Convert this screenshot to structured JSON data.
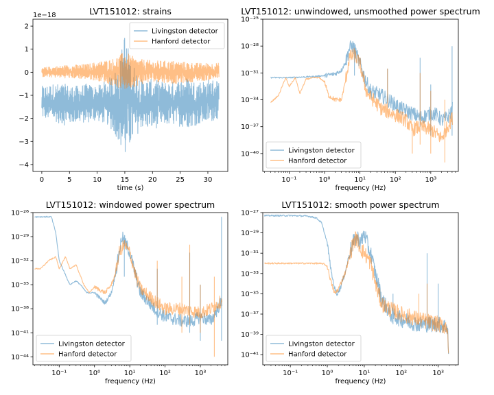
{
  "chart_data": [
    {
      "type": "line",
      "title": "LVT151012: strains",
      "xlabel": "time (s)",
      "ylabel": "",
      "offset_label": "1e−18",
      "xlim": [
        -1.6,
        33.6
      ],
      "ylim": [
        -4.3,
        2.3
      ],
      "xticks": [
        0,
        5,
        10,
        15,
        20,
        25,
        30
      ],
      "yticks": [
        -4,
        -3,
        -2,
        -1,
        0,
        1,
        2
      ],
      "legend": "top-right",
      "series": [
        {
          "name": "Livingston detector",
          "color": "#1f77b4",
          "envelope": [
            [
              0,
              -2.0,
              -0.6
            ],
            [
              2,
              -2.1,
              -0.5
            ],
            [
              4,
              -2.3,
              -0.5
            ],
            [
              6,
              -2.2,
              -0.6
            ],
            [
              8,
              -2.2,
              -0.5
            ],
            [
              10,
              -2.1,
              -0.6
            ],
            [
              12,
              -2.3,
              -0.3
            ],
            [
              14,
              -3.0,
              0.3
            ],
            [
              15,
              -3.9,
              1.9
            ],
            [
              16,
              -3.2,
              0.6
            ],
            [
              18,
              -2.4,
              -0.3
            ],
            [
              20,
              -2.5,
              -0.3
            ],
            [
              22,
              -2.3,
              -0.4
            ],
            [
              24,
              -2.3,
              -0.4
            ],
            [
              26,
              -2.4,
              -0.2
            ],
            [
              28,
              -2.3,
              -0.4
            ],
            [
              30,
              -2.2,
              -0.3
            ],
            [
              32,
              -2.0,
              -0.3
            ]
          ]
        },
        {
          "name": "Hanford detector",
          "color": "#ff7f0e",
          "envelope": [
            [
              0,
              -0.2,
              0.2
            ],
            [
              4,
              -0.25,
              0.3
            ],
            [
              8,
              -0.3,
              0.35
            ],
            [
              11,
              -0.4,
              0.5
            ],
            [
              13,
              -0.6,
              0.6
            ],
            [
              15,
              -0.8,
              0.9
            ],
            [
              17,
              -0.6,
              0.6
            ],
            [
              20,
              -0.4,
              0.5
            ],
            [
              24,
              -0.5,
              0.5
            ],
            [
              28,
              -0.4,
              0.4
            ],
            [
              32,
              -0.3,
              0.4
            ]
          ]
        }
      ]
    },
    {
      "type": "line",
      "title": "LVT151012: unwindowed, unsmoothed power spectrum",
      "xlabel": "frequency (Hz)",
      "ylabel": "",
      "x_scale": "log",
      "y_scale": "log",
      "xlim": [
        0.018,
        6000
      ],
      "ylim": [
        1e-42,
        1e-25
      ],
      "xticks": [
        0.1,
        1,
        10,
        100,
        1000
      ],
      "xtick_labels": [
        "10⁻¹",
        "10⁰",
        "10¹",
        "10²",
        "10³"
      ],
      "yticks": [
        1e-40,
        1e-37,
        1e-34,
        1e-31,
        1e-28,
        1e-25
      ],
      "ytick_labels": [
        "10⁻⁴⁰",
        "10⁻³⁷",
        "10⁻³⁴",
        "10⁻³¹",
        "10⁻²⁸",
        "10⁻²⁵"
      ],
      "legend": "lower-left",
      "series": [
        {
          "name": "Livingston detector",
          "color": "#1f77b4",
          "points": [
            [
              0.03,
              3e-32
            ],
            [
              0.1,
              3e-32
            ],
            [
              0.5,
              4e-32
            ],
            [
              1,
              5e-32
            ],
            [
              2,
              8e-32
            ],
            [
              3,
              2e-31
            ],
            [
              4,
              2e-30
            ],
            [
              5,
              5e-29
            ],
            [
              6,
              1e-28
            ],
            [
              7,
              5e-29
            ],
            [
              8,
              1e-29
            ],
            [
              10,
              1e-30
            ],
            [
              15,
              1e-32
            ],
            [
              20,
              1e-33
            ],
            [
              40,
              3e-34
            ],
            [
              80,
              5e-35
            ],
            [
              150,
              1e-35
            ],
            [
              300,
              3e-36
            ],
            [
              500,
              1e-36
            ],
            [
              800,
              2e-36
            ],
            [
              1000,
              3e-36
            ],
            [
              1500,
              2e-36
            ],
            [
              2000,
              5e-37
            ],
            [
              3000,
              1e-36
            ],
            [
              4096,
              1e-35
            ]
          ],
          "spikes": [
            [
              7,
              5e-29,
              5e-32
            ],
            [
              60,
              3e-31,
              1e-34
            ],
            [
              500,
              5e-30,
              1e-37
            ],
            [
              1000,
              5e-33,
              1e-38
            ],
            [
              4000,
              1e-28,
              1e-38
            ]
          ]
        },
        {
          "name": "Hanford detector",
          "color": "#ff7f0e",
          "points": [
            [
              0.03,
              5e-35
            ],
            [
              0.05,
              3e-34
            ],
            [
              0.08,
              3e-32
            ],
            [
              0.1,
              3e-33
            ],
            [
              0.15,
              3e-32
            ],
            [
              0.2,
              5e-34
            ],
            [
              0.3,
              2e-32
            ],
            [
              0.5,
              3e-32
            ],
            [
              0.7,
              3e-32
            ],
            [
              1,
              1e-32
            ],
            [
              1.3,
              3e-34
            ],
            [
              2,
              1e-34
            ],
            [
              3,
              1e-34
            ],
            [
              4,
              2e-32
            ],
            [
              5,
              5e-30
            ],
            [
              7,
              1e-29
            ],
            [
              10,
              1e-30
            ],
            [
              15,
              1e-33
            ],
            [
              20,
              2e-34
            ],
            [
              40,
              1e-35
            ],
            [
              80,
              3e-36
            ],
            [
              150,
              1e-36
            ],
            [
              200,
              5e-37
            ],
            [
              300,
              5e-38
            ],
            [
              500,
              1e-37
            ],
            [
              1000,
              5e-38
            ],
            [
              2000,
              5e-39
            ],
            [
              3000,
              1e-37
            ],
            [
              4096,
              1e-36
            ]
          ],
          "spikes": [
            [
              60,
              3e-31,
              1e-35
            ],
            [
              300,
              1e-37,
              1e-40
            ],
            [
              500,
              1e-31,
              1e-39
            ],
            [
              1000,
              1e-33,
              1e-40
            ],
            [
              2500,
              1e-34,
              1e-41
            ]
          ]
        }
      ]
    },
    {
      "type": "line",
      "title": "LVT151012: windowed power spectrum",
      "xlabel": "frequency (Hz)",
      "ylabel": "",
      "x_scale": "log",
      "y_scale": "log",
      "xlim": [
        0.018,
        6000
      ],
      "ylim": [
        1e-45,
        1e-26
      ],
      "xticks": [
        0.1,
        1,
        10,
        100,
        1000
      ],
      "xtick_labels": [
        "10⁻¹",
        "10⁰",
        "10¹",
        "10²",
        "10³"
      ],
      "yticks": [
        1e-44,
        1e-41,
        1e-38,
        1e-35,
        1e-32,
        1e-29,
        1e-26
      ],
      "ytick_labels": [
        "10⁻⁴⁴",
        "10⁻⁴¹",
        "10⁻³⁸",
        "10⁻³⁵",
        "10⁻³²",
        "10⁻²⁹",
        "10⁻²⁶"
      ],
      "legend": "lower-left",
      "series": [
        {
          "name": "Livingston detector",
          "color": "#1f77b4",
          "points": [
            [
              0.02,
              3e-27
            ],
            [
              0.06,
              3e-27
            ],
            [
              0.08,
              3e-29
            ],
            [
              0.1,
              1e-32
            ],
            [
              0.2,
              1e-35
            ],
            [
              0.3,
              3e-35
            ],
            [
              0.4,
              1e-35
            ],
            [
              0.6,
              1e-36
            ],
            [
              1,
              1e-36
            ],
            [
              2,
              5e-38
            ],
            [
              3,
              1e-36
            ],
            [
              4,
              3e-34
            ],
            [
              5,
              1e-31
            ],
            [
              6,
              1e-29
            ],
            [
              8,
              1e-30
            ],
            [
              10,
              1e-31
            ],
            [
              15,
              1e-34
            ],
            [
              20,
              1e-36
            ],
            [
              50,
              1e-38
            ],
            [
              100,
              1e-39
            ],
            [
              300,
              3e-40
            ],
            [
              600,
              3e-40
            ],
            [
              1000,
              1e-39
            ],
            [
              2000,
              3e-40
            ],
            [
              4096,
              1e-37
            ]
          ],
          "spikes": [
            [
              7,
              1e-29,
              1e-34
            ],
            [
              60,
              1e-33,
              1e-40
            ],
            [
              500,
              1e-31,
              1e-41
            ],
            [
              1000,
              1e-35,
              1e-42
            ],
            [
              4000,
              3e-27,
              1e-42
            ]
          ]
        },
        {
          "name": "Hanford detector",
          "color": "#ff7f0e",
          "points": [
            [
              0.02,
              1e-33
            ],
            [
              0.03,
              1e-33
            ],
            [
              0.05,
              1e-32
            ],
            [
              0.08,
              3e-32
            ],
            [
              0.1,
              1e-33
            ],
            [
              0.15,
              3e-32
            ],
            [
              0.2,
              1e-33
            ],
            [
              0.3,
              3e-33
            ],
            [
              0.5,
              1e-35
            ],
            [
              0.7,
              1e-36
            ],
            [
              1,
              5e-36
            ],
            [
              2,
              1e-36
            ],
            [
              3,
              1e-35
            ],
            [
              4,
              3e-34
            ],
            [
              5,
              1e-31
            ],
            [
              7,
              1e-30
            ],
            [
              10,
              1e-31
            ],
            [
              15,
              1e-34
            ],
            [
              20,
              3e-36
            ],
            [
              50,
              1e-37
            ],
            [
              100,
              1e-38
            ],
            [
              300,
              1e-38
            ],
            [
              1000,
              3e-39
            ],
            [
              2000,
              1e-38
            ],
            [
              4096,
              1e-37
            ]
          ],
          "spikes": [
            [
              60,
              1e-32,
              1e-38
            ],
            [
              300,
              1e-34,
              1e-41
            ],
            [
              500,
              1e-30,
              1e-40
            ],
            [
              1000,
              1e-35,
              1e-41
            ],
            [
              2500,
              1e-34,
              1e-44
            ]
          ]
        }
      ]
    },
    {
      "type": "line",
      "title": "LVT151012: smooth power spectrum",
      "xlabel": "frequency (Hz)",
      "ylabel": "",
      "x_scale": "log",
      "y_scale": "log",
      "xlim": [
        0.018,
        3500
      ],
      "ylim": [
        1e-42,
        1e-27
      ],
      "xticks": [
        0.1,
        1,
        10,
        100,
        1000
      ],
      "xtick_labels": [
        "10⁻¹",
        "10⁰",
        "10¹",
        "10²",
        "10³"
      ],
      "yticks": [
        1e-41,
        1e-39,
        1e-37,
        1e-35,
        1e-33,
        1e-31,
        1e-29,
        1e-27
      ],
      "ytick_labels": [
        "10⁻⁴¹",
        "10⁻³⁹",
        "10⁻³⁷",
        "10⁻³⁵",
        "10⁻³³",
        "10⁻³¹",
        "10⁻²⁹",
        "10⁻²⁷"
      ],
      "legend": "lower-left",
      "series": [
        {
          "name": "Livingston detector",
          "color": "#1f77b4",
          "points": [
            [
              0.02,
              5e-28
            ],
            [
              0.1,
              5e-28
            ],
            [
              0.3,
              4.5e-28
            ],
            [
              0.5,
              3e-28
            ],
            [
              0.7,
              1e-28
            ],
            [
              1,
              1e-30
            ],
            [
              1.3,
              1e-33
            ],
            [
              1.6,
              3e-35
            ],
            [
              1.8,
              1e-35
            ],
            [
              2.2,
              3e-35
            ],
            [
              3,
              1e-33
            ],
            [
              4,
              1e-31
            ],
            [
              5,
              1e-30
            ],
            [
              6,
              3e-30
            ],
            [
              7,
              3e-30
            ],
            [
              8,
              1e-30
            ],
            [
              10,
              1e-29
            ],
            [
              13,
              3e-31
            ],
            [
              15,
              1e-31
            ],
            [
              20,
              1e-33
            ],
            [
              30,
              3e-36
            ],
            [
              50,
              1e-37
            ],
            [
              100,
              3e-38
            ],
            [
              300,
              1e-38
            ],
            [
              1000,
              1e-38
            ],
            [
              1800,
              5e-39
            ],
            [
              1900,
              1e-41
            ]
          ],
          "spikes": [
            [
              500,
              1e-31,
              1e-38
            ],
            [
              1000,
              1e-34,
              1e-38
            ],
            [
              60,
              1e-35,
              1e-38
            ]
          ]
        },
        {
          "name": "Hanford detector",
          "color": "#ff7f0e",
          "points": [
            [
              0.02,
              1e-32
            ],
            [
              0.1,
              1e-32
            ],
            [
              0.5,
              1e-32
            ],
            [
              0.8,
              9e-33
            ],
            [
              1,
              5e-33
            ],
            [
              1.3,
              1e-34
            ],
            [
              1.6,
              1e-35
            ],
            [
              2,
              3e-35
            ],
            [
              3,
              1e-33
            ],
            [
              5,
              1e-30
            ],
            [
              6,
              3e-30
            ],
            [
              7,
              1e-30
            ],
            [
              8,
              3e-31
            ],
            [
              10,
              1e-31
            ],
            [
              15,
              1e-32
            ],
            [
              20,
              1e-34
            ],
            [
              30,
              1e-36
            ],
            [
              50,
              3e-37
            ],
            [
              100,
              1e-37
            ],
            [
              300,
              3e-38
            ],
            [
              1000,
              1e-38
            ],
            [
              1800,
              5e-39
            ],
            [
              1900,
              1e-41
            ]
          ],
          "spikes": [
            [
              500,
              1e-34,
              1e-38
            ],
            [
              300,
              1e-35,
              1e-38
            ]
          ]
        }
      ]
    }
  ]
}
